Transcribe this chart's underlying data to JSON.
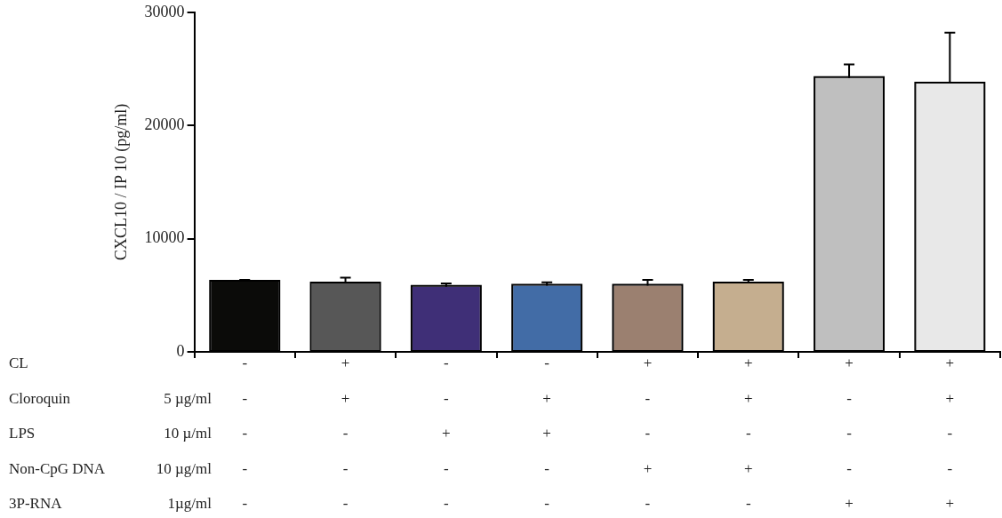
{
  "chart_data": {
    "type": "bar",
    "ylabel": "CXCL10 / IP 10 (pg/ml)",
    "categories": [
      "-\n-\n-\n-\n-",
      "+\n+\n-\n-\n-",
      "-\n-\n+\n-\n-",
      "-\n+\n+\n-\n-",
      "+\n-\n-\n+\n-",
      "+\n+\n-\n+\n-",
      "+\n-\n-\n-\n+",
      "+\n+\n-\n-\n+"
    ],
    "values": [
      6200,
      6050,
      5750,
      5850,
      5850,
      6050,
      24200,
      23700
    ],
    "errors": [
      [
        6200,
        6360
      ],
      [
        6050,
        6560
      ],
      [
        5750,
        6050
      ],
      [
        5850,
        6150
      ],
      [
        5850,
        6350
      ],
      [
        6050,
        6350
      ],
      [
        24200,
        25400
      ],
      [
        23700,
        28200
      ]
    ],
    "colors": [
      "#0b0b09",
      "#575757",
      "#3f2f77",
      "#426ca6",
      "#9b8070",
      "#c5ae8f",
      "#bfbfbf",
      "#e8e8e8"
    ],
    "ylim": [
      0,
      30000
    ],
    "yticks": [
      0,
      10000,
      20000,
      30000
    ],
    "grid": false,
    "legend": false,
    "annotations": [
      "CL",
      "Cloroquin",
      "5 µg/ml",
      "LPS",
      "10 µ/ml",
      "Non-CpG DNA",
      "10 µg/ml",
      "3P-RNA",
      "1µg/ml"
    ]
  }
}
